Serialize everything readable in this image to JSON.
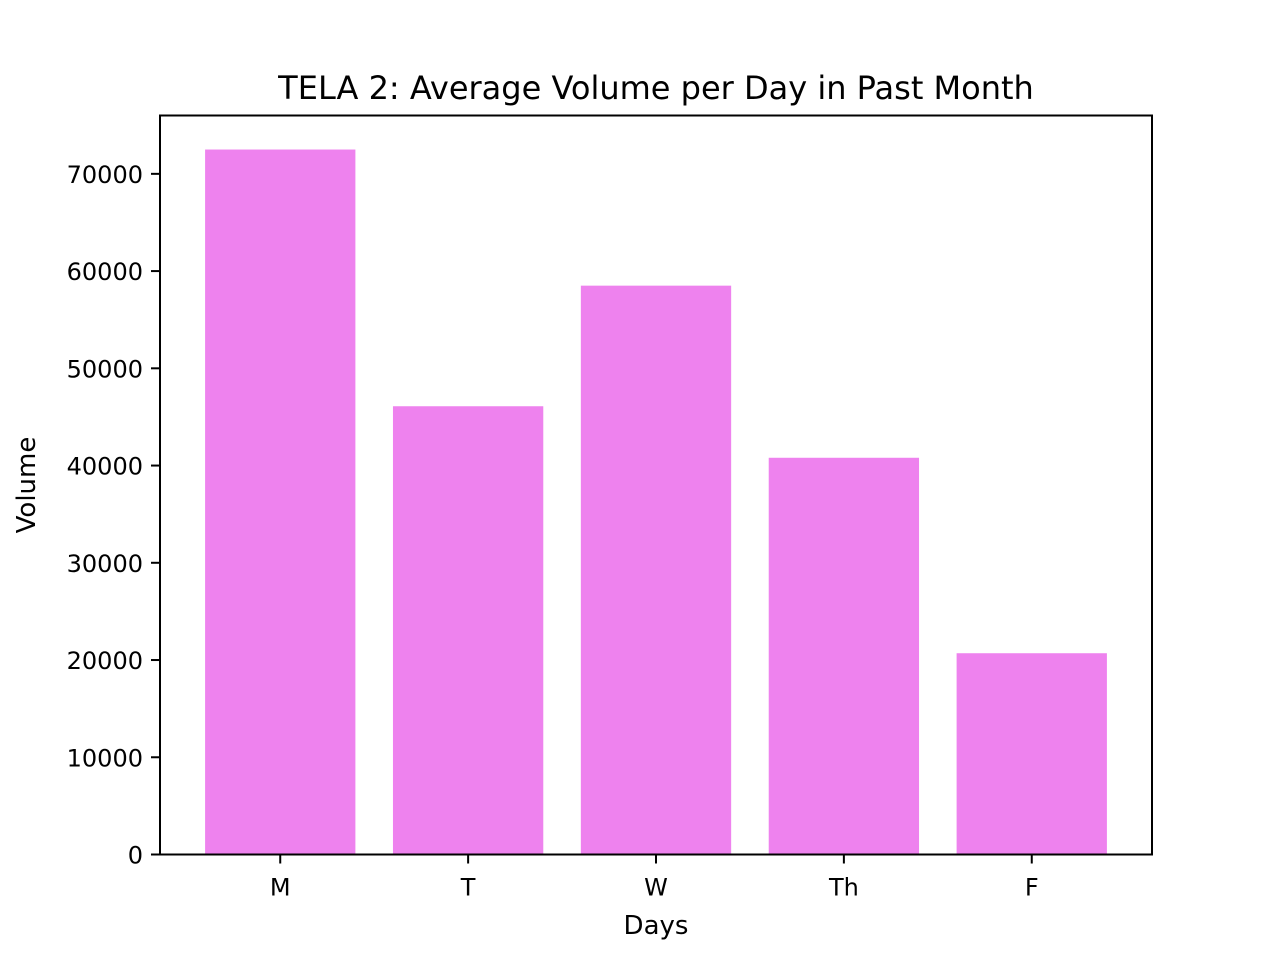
{
  "chart_data": {
    "type": "bar",
    "title": "TELA 2: Average Volume per Day in Past Month",
    "xlabel": "Days",
    "ylabel": "Volume",
    "categories": [
      "M",
      "T",
      "W",
      "Th",
      "F"
    ],
    "values": [
      72500,
      46100,
      58500,
      40800,
      20700
    ],
    "ylim": [
      0,
      76000
    ],
    "yticks": [
      0,
      10000,
      20000,
      30000,
      40000,
      50000,
      60000,
      70000
    ],
    "ytick_labels": [
      "0",
      "10000",
      "20000",
      "30000",
      "40000",
      "50000",
      "60000",
      "70000"
    ],
    "grid": false,
    "legend": "none",
    "bar_color": "#ee82ee"
  }
}
